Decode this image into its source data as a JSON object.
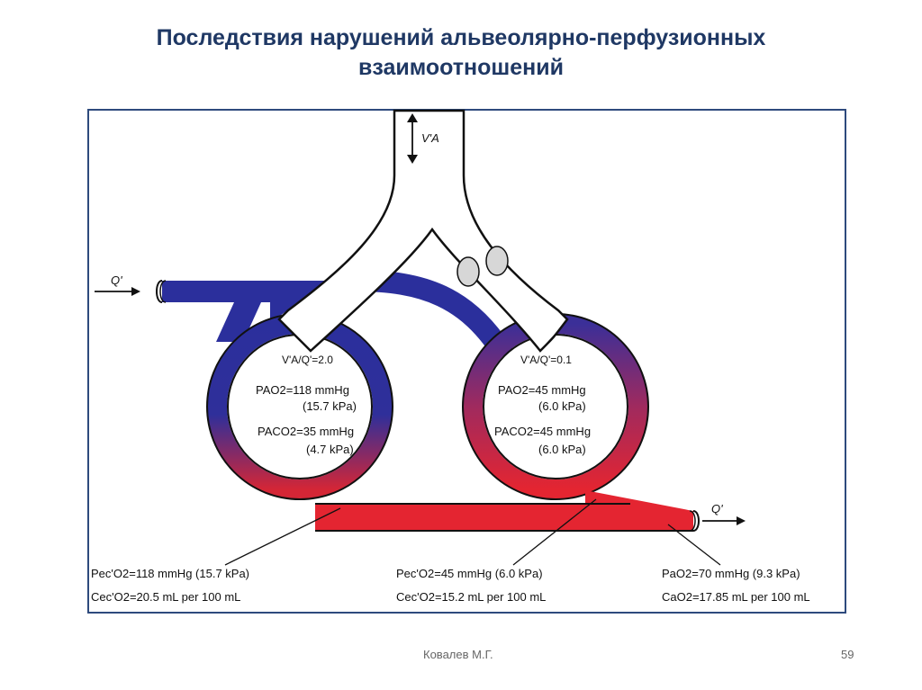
{
  "slide": {
    "title_line1": "Последствия нарушений альвеолярно-перфузионных",
    "title_line2": "взаимоотношений",
    "author": "Ковалев М.Г.",
    "page_number": "59"
  },
  "diagram": {
    "ventilation_label": "V'A",
    "flow_in_label": "Q'",
    "flow_out_label": "Q'",
    "left_alveolus": {
      "ratio": "V'A/Q'=2.0",
      "pao2": "PAO2=118 mmHg",
      "pao2_kpa": "(15.7 kPa)",
      "paco2": "PACO2=35 mmHg",
      "paco2_kpa": "(4.7 kPa)"
    },
    "right_alveolus": {
      "ratio": "V'A/Q'=0.1",
      "pao2": "PAO2=45 mmHg",
      "pao2_kpa": "(6.0 kPa)",
      "paco2": "PACO2=45 mmHg",
      "paco2_kpa": "(6.0 kPa)"
    },
    "bottom_left": {
      "p": "Pec'O2=118 mmHg (15.7 kPa)",
      "c": "Cec'O2=20.5 mL per 100 mL"
    },
    "bottom_middle": {
      "p": "Pec'O2=45 mmHg (6.0 kPa)",
      "c": "Cec'O2=15.2 mL per 100 mL"
    },
    "bottom_right": {
      "p": "PaO2=70 mmHg (9.3 kPa)",
      "c": "CaO2=17.85 mL per 100 mL"
    },
    "colors": {
      "venous": "#2b2f9c",
      "arterial": "#e42531",
      "frame": "#2e4a7d",
      "title": "#1f3864"
    }
  }
}
